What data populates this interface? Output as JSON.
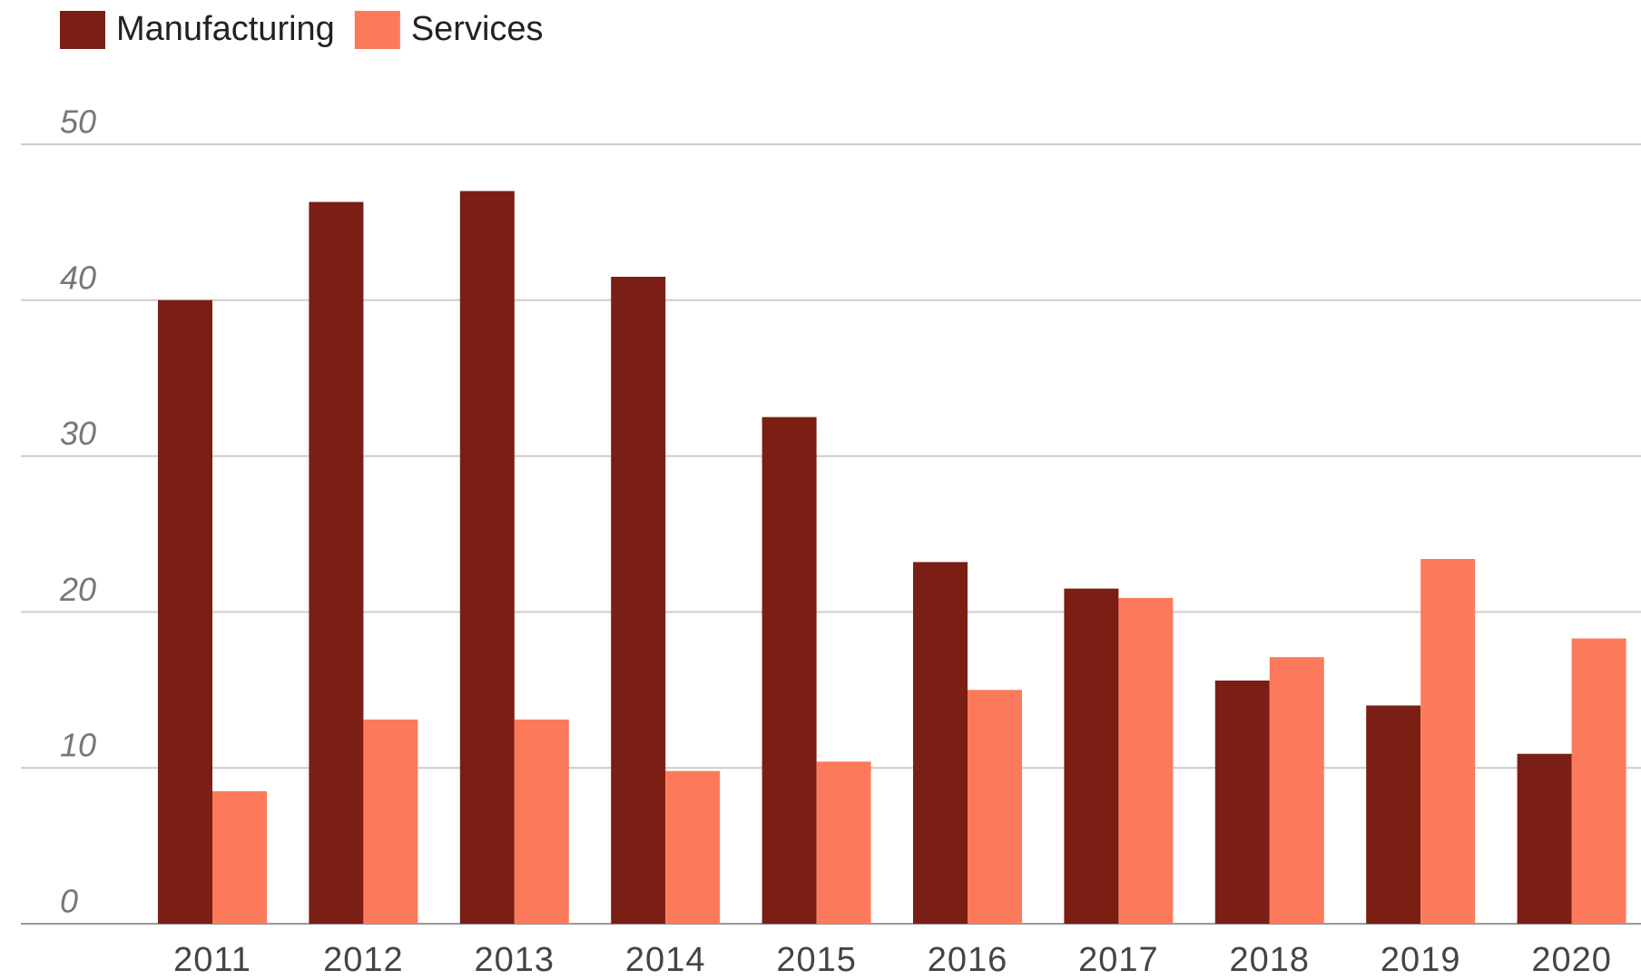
{
  "chart_data": {
    "type": "bar",
    "categories": [
      "2011",
      "2012",
      "2013",
      "2014",
      "2015",
      "2016",
      "2017",
      "2018",
      "2019",
      "2020"
    ],
    "series": [
      {
        "name": "Manufacturing",
        "color": "#7b1e14",
        "values": [
          40.0,
          46.3,
          47.0,
          41.5,
          32.5,
          23.2,
          21.5,
          15.6,
          14.0,
          10.9
        ]
      },
      {
        "name": "Services",
        "color": "#fc7a5b",
        "values": [
          8.5,
          13.1,
          13.1,
          9.8,
          10.4,
          15.0,
          20.9,
          17.1,
          23.4,
          18.3
        ]
      }
    ],
    "ylim": [
      0,
      50
    ],
    "yticks": [
      0,
      10,
      20,
      30,
      40,
      50
    ],
    "grid": true,
    "legend": "top-left"
  }
}
